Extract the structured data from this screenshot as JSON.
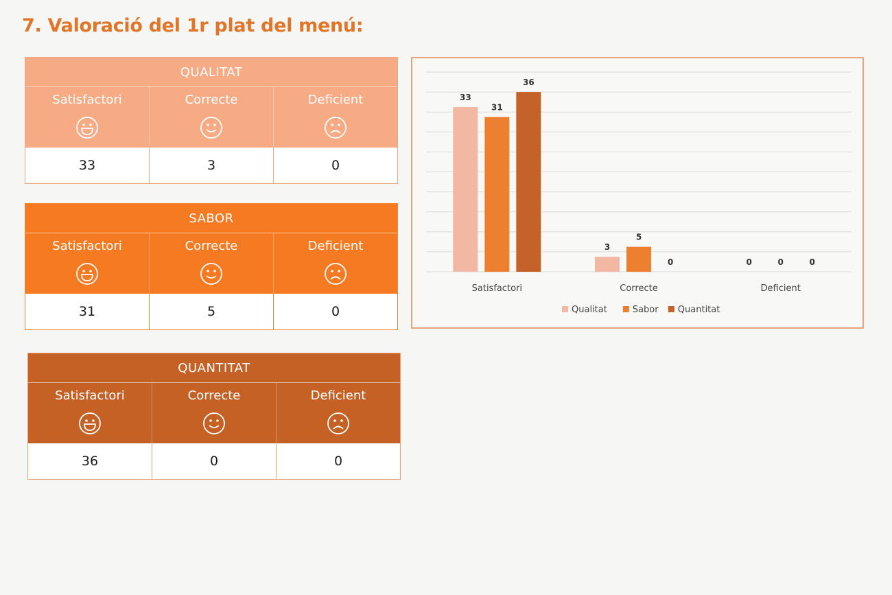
{
  "page_title": "7. Valoració del 1r plat del menú:",
  "tables": [
    {
      "header": "QUALITAT",
      "columns": [
        "Satisfactori",
        "Correcte",
        "Deficient"
      ],
      "values": [
        "33",
        "3",
        "0"
      ]
    },
    {
      "header": "SABOR",
      "columns": [
        "Satisfactori",
        "Correcte",
        "Deficient"
      ],
      "values": [
        "31",
        "5",
        "0"
      ]
    },
    {
      "header": "QUANTITAT",
      "columns": [
        "Satisfactori",
        "Correcte",
        "Deficient"
      ],
      "values": [
        "36",
        "0",
        "0"
      ]
    }
  ],
  "icons": [
    "smile-icon",
    "neutral-smile-icon",
    "frown-icon"
  ],
  "colors": {
    "title": "#e0762a",
    "qualitat": "#f2b8a4",
    "sabor": "#ec7f30",
    "quantitat": "#c5622a"
  },
  "chart_data": {
    "type": "bar",
    "categories": [
      "Satisfactori",
      "Correcte",
      "Deficient"
    ],
    "series": [
      {
        "name": "Qualitat",
        "values": [
          33,
          3,
          0
        ]
      },
      {
        "name": "Sabor",
        "values": [
          31,
          5,
          0
        ]
      },
      {
        "name": "Quantitat",
        "values": [
          36,
          0,
          0
        ]
      }
    ],
    "ylim": [
      0,
      40
    ],
    "grid": true,
    "legend_position": "bottom"
  }
}
